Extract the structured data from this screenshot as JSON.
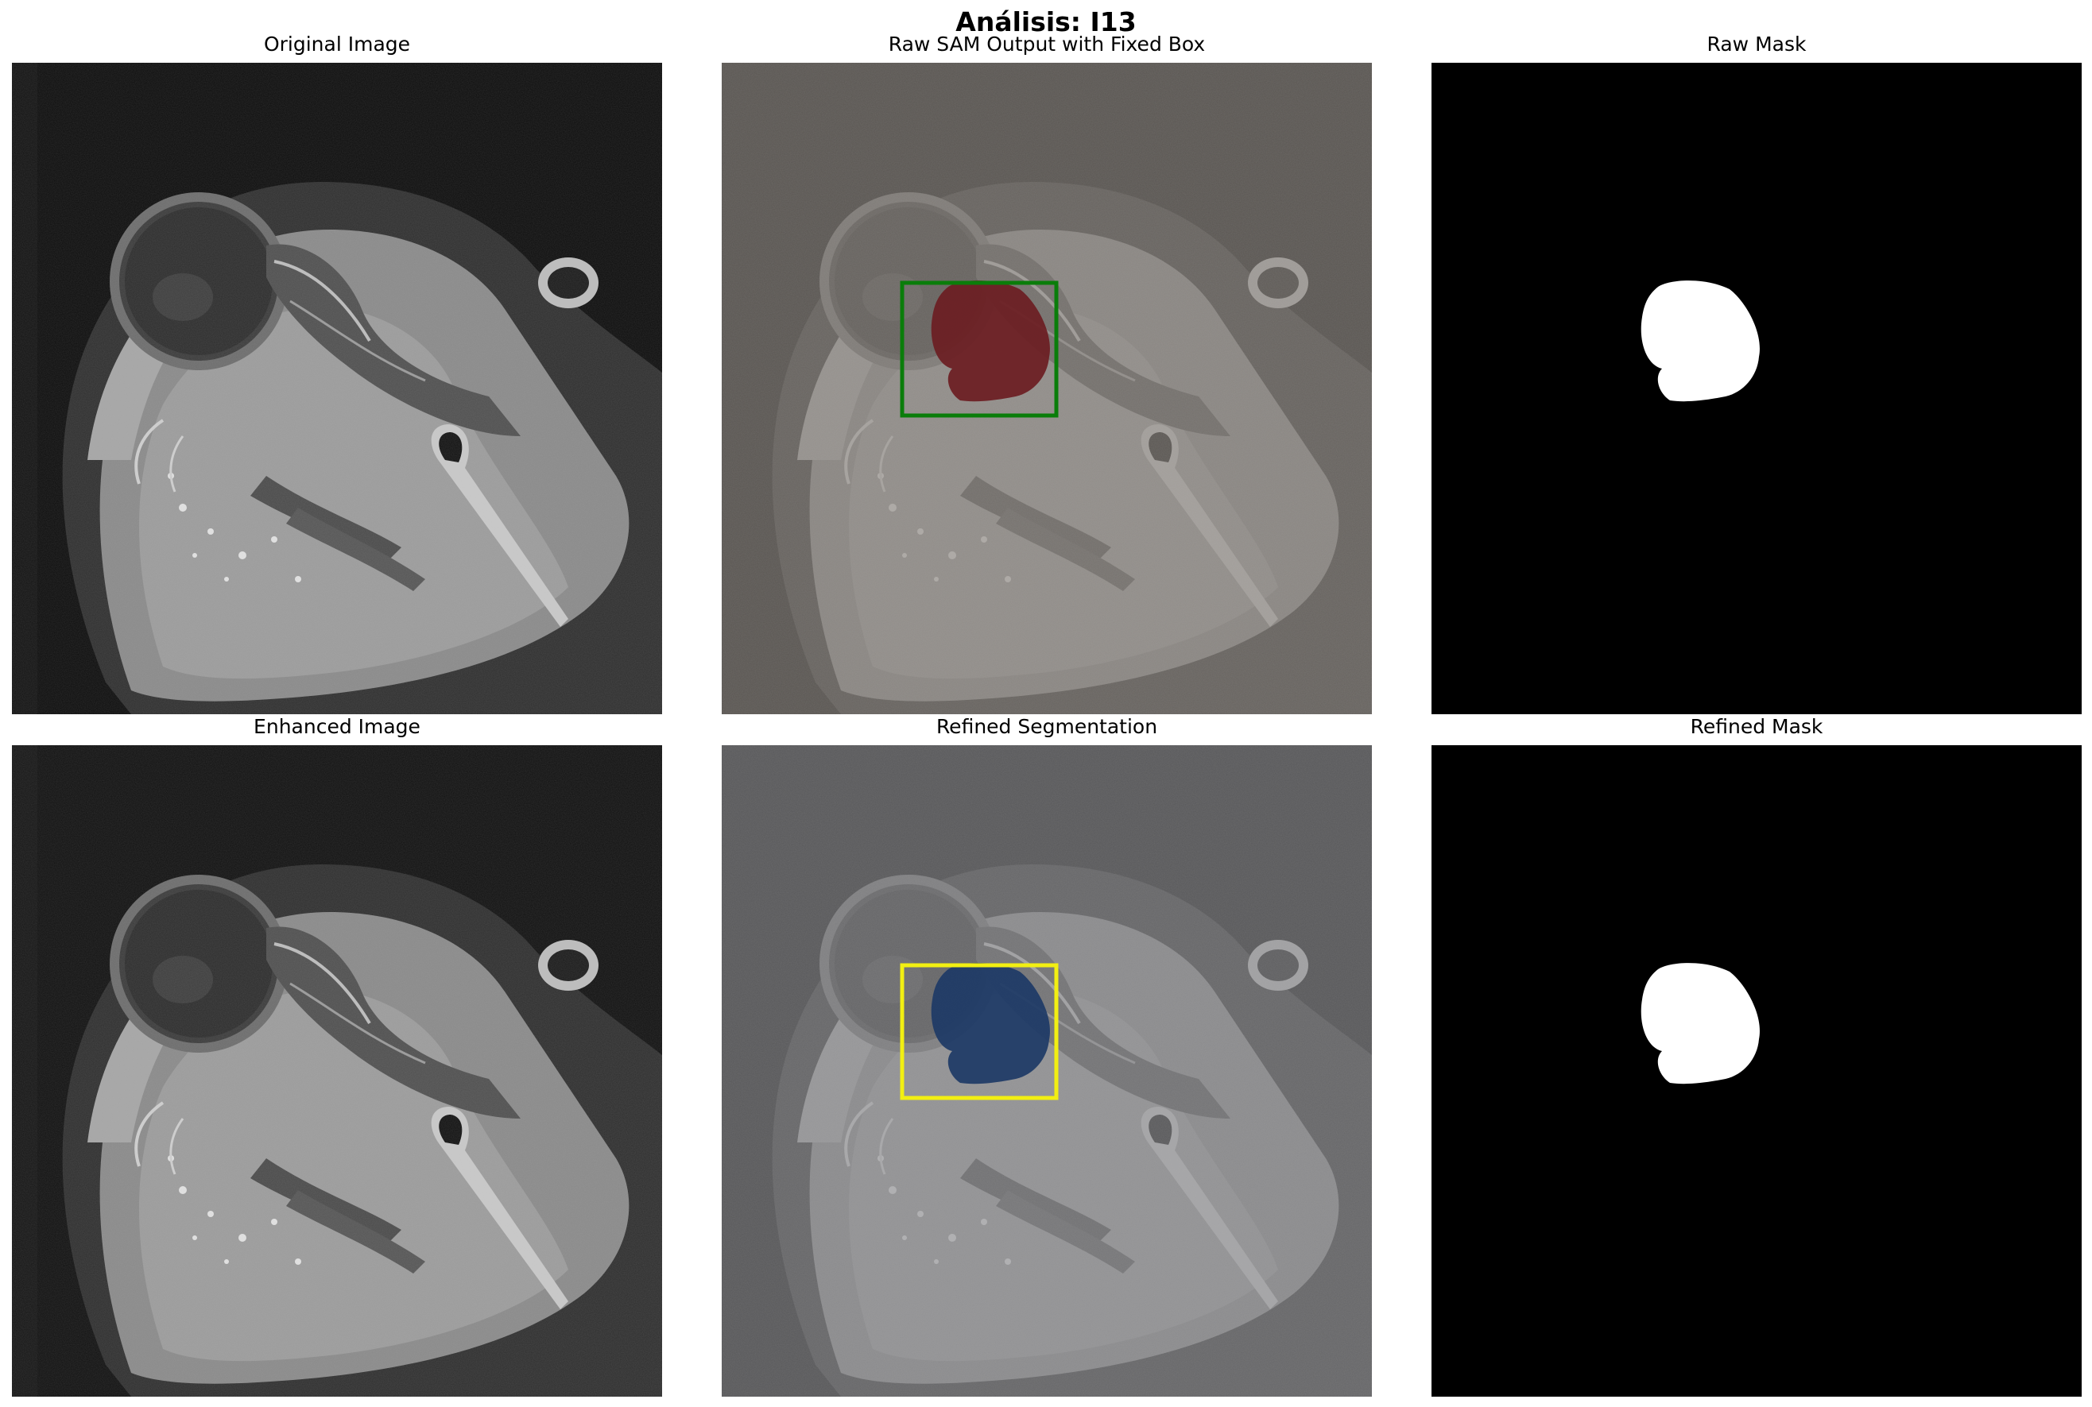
{
  "figure": {
    "title": "Análisis: I13"
  },
  "panels": [
    {
      "title": "Original Image"
    },
    {
      "title": "Raw SAM Output with Fixed Box",
      "box_color": "#0a7d0a",
      "mask_color": "#6b1d22"
    },
    {
      "title": "Raw Mask"
    },
    {
      "title": "Enhanced Image"
    },
    {
      "title": "Refined Segmentation",
      "box_color": "#f2ef12",
      "mask_color": "#1d3a66"
    },
    {
      "title": "Refined Mask"
    }
  ]
}
